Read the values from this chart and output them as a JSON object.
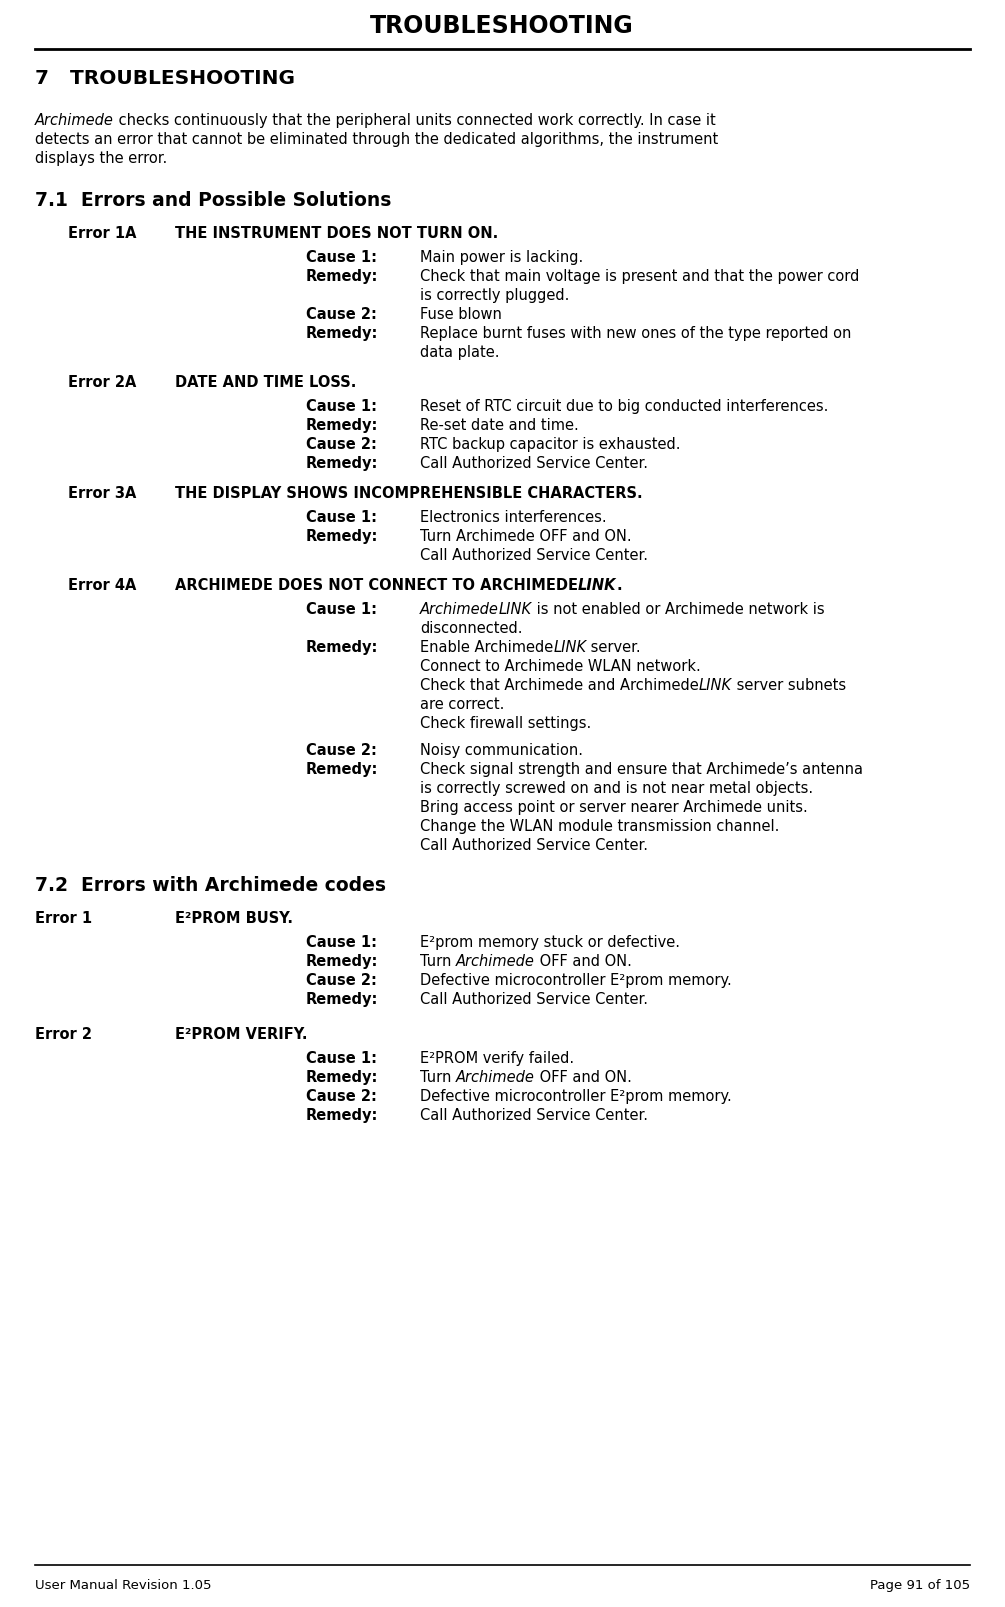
{
  "header_title": "TROUBLESHOOTING",
  "footer_left": "User Manual Revision 1.05",
  "footer_right": "Page 91 of 105",
  "bg_color": "#ffffff"
}
